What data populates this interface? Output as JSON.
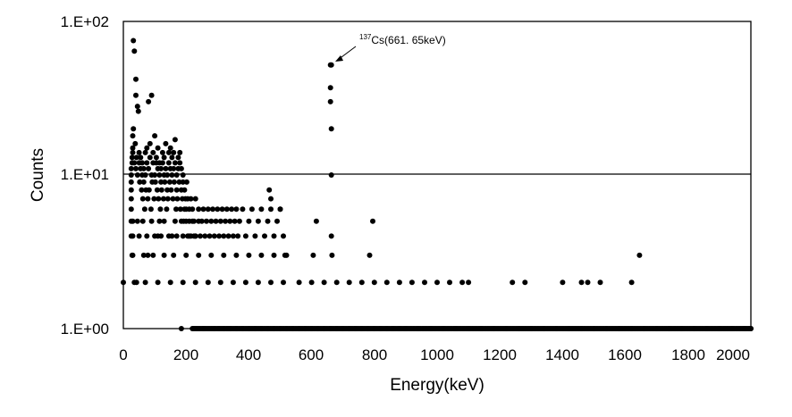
{
  "chart_data": {
    "type": "scatter",
    "xlabel": "Energy(keV)",
    "ylabel": "Counts",
    "xlim": [
      0,
      2000
    ],
    "ylim": [
      1,
      100
    ],
    "y_scale": "log",
    "x_ticks": [
      "0",
      "200",
      "400",
      "600",
      "800",
      "1000",
      "1200",
      "1400",
      "1600",
      "1800",
      "2000"
    ],
    "y_ticks": [
      "1.E+00",
      "1.E+01",
      "1.E+02"
    ],
    "grid": "horizontal",
    "marker_color": "#000000",
    "annotation": {
      "superscript": "137",
      "text": "Cs(661. 65keV)",
      "x": 663,
      "y": 52
    },
    "x": [
      0,
      25,
      25,
      25,
      25,
      25,
      25,
      25,
      25,
      28,
      28,
      30,
      30,
      30,
      32,
      32,
      35,
      35,
      38,
      40,
      40,
      40,
      42,
      45,
      45,
      48,
      50,
      50,
      52,
      55,
      55,
      58,
      60,
      60,
      62,
      65,
      65,
      68,
      70,
      70,
      72,
      75,
      75,
      78,
      80,
      80,
      82,
      85,
      85,
      88,
      90,
      90,
      92,
      95,
      95,
      98,
      100,
      100,
      102,
      105,
      105,
      108,
      110,
      110,
      112,
      115,
      115,
      118,
      120,
      120,
      122,
      125,
      125,
      128,
      130,
      130,
      132,
      135,
      135,
      138,
      140,
      140,
      142,
      145,
      145,
      148,
      150,
      150,
      152,
      155,
      155,
      158,
      160,
      160,
      162,
      165,
      165,
      168,
      170,
      170,
      172,
      175,
      175,
      178,
      180,
      180,
      182,
      185,
      185,
      188,
      190,
      190,
      192,
      195,
      195,
      198,
      200,
      200,
      202,
      205,
      205,
      210,
      210,
      215,
      215,
      220,
      220,
      225,
      225,
      230,
      230,
      240,
      240,
      245,
      250,
      255,
      260,
      265,
      270,
      275,
      280,
      285,
      290,
      295,
      300,
      305,
      310,
      315,
      320,
      325,
      330,
      335,
      340,
      345,
      350,
      355,
      360,
      365,
      370,
      380,
      390,
      400,
      410,
      420,
      430,
      440,
      450,
      460,
      470,
      480,
      490,
      500,
      510,
      30,
      45,
      62,
      90,
      115,
      130,
      165,
      185,
      30,
      50,
      75,
      100,
      120,
      145,
      170,
      190,
      210,
      230,
      30,
      65,
      95,
      130,
      160,
      200,
      240,
      280,
      320,
      360,
      400,
      440,
      480,
      520,
      35,
      70,
      110,
      150,
      190,
      230,
      270,
      310,
      350,
      390,
      430,
      470,
      510,
      560,
      600,
      640,
      680,
      720,
      760,
      800,
      840,
      880,
      920,
      960,
      1000,
      1040,
      1080,
      1100,
      1240,
      1280,
      1400,
      1460,
      1480,
      1520,
      1620,
      185,
      255,
      290,
      305,
      320,
      340,
      360,
      380,
      400,
      420,
      440,
      460,
      480,
      500,
      520,
      540,
      560,
      580,
      600,
      620,
      640,
      660,
      680,
      700,
      720,
      740,
      760,
      780,
      800,
      820,
      840,
      860,
      880,
      900,
      940,
      980,
      1020,
      1060,
      1100,
      1140,
      1180,
      1220,
      1260,
      1300,
      1340,
      1380,
      1420,
      1460,
      1500,
      1540,
      1580,
      1620,
      1660,
      1700,
      1740,
      1780,
      1820,
      1860,
      1900,
      1940,
      1980,
      2000,
      660,
      660,
      660,
      663,
      663,
      663,
      663,
      615,
      795,
      465,
      470,
      500,
      515,
      605,
      665,
      785,
      1645,
      28,
      42,
      78,
      110,
      155
    ],
    "y": [
      2,
      4,
      5,
      6,
      7,
      8,
      9,
      10,
      11,
      12,
      13,
      14,
      15,
      18,
      20,
      75,
      64,
      12,
      16,
      33,
      42,
      11,
      13,
      28,
      10,
      26,
      12,
      14,
      9,
      11,
      13,
      8,
      10,
      12,
      7,
      9,
      11,
      6,
      10,
      14,
      8,
      12,
      15,
      7,
      11,
      30,
      8,
      13,
      16,
      6,
      10,
      33,
      9,
      12,
      14,
      7,
      10,
      18,
      9,
      12,
      13,
      8,
      11,
      15,
      7,
      10,
      12,
      6,
      9,
      11,
      8,
      12,
      14,
      7,
      10,
      13,
      9,
      11,
      16,
      6,
      8,
      10,
      7,
      12,
      14,
      9,
      11,
      15,
      8,
      10,
      13,
      7,
      11,
      14,
      9,
      12,
      17,
      6,
      8,
      10,
      7,
      11,
      13,
      9,
      12,
      14,
      6,
      8,
      11,
      7,
      9,
      10,
      5,
      8,
      6,
      7,
      5,
      6,
      9,
      4,
      7,
      5,
      6,
      7,
      4,
      5,
      6,
      4,
      5,
      7,
      4,
      5,
      6,
      4,
      5,
      6,
      4,
      5,
      6,
      4,
      5,
      6,
      4,
      5,
      6,
      4,
      5,
      6,
      4,
      5,
      6,
      4,
      5,
      6,
      4,
      5,
      6,
      4,
      5,
      6,
      4,
      5,
      6,
      4,
      5,
      6,
      4,
      5,
      6,
      4,
      5,
      6,
      4,
      5,
      5,
      5,
      5,
      5,
      5,
      5,
      5,
      4,
      4,
      4,
      4,
      4,
      4,
      4,
      4,
      4,
      4,
      3,
      3,
      3,
      3,
      3,
      3,
      3,
      3,
      3,
      3,
      3,
      3,
      3,
      3,
      2,
      2,
      2,
      2,
      2,
      2,
      2,
      2,
      2,
      2,
      2,
      2,
      2,
      2,
      2,
      2,
      2,
      2,
      2,
      2,
      2,
      2,
      2,
      2,
      2,
      2,
      2,
      2,
      2,
      2,
      2,
      2,
      2,
      2,
      2,
      1,
      1,
      1,
      1,
      1,
      1,
      1,
      1,
      1,
      1,
      1,
      1,
      1,
      1,
      1,
      1,
      1,
      1,
      1,
      1,
      1,
      1,
      1,
      1,
      1,
      1,
      1,
      1,
      1,
      1,
      1,
      1,
      1,
      1,
      1,
      1,
      1,
      1,
      1,
      1,
      1,
      1,
      1,
      1,
      1,
      1,
      1,
      1,
      1,
      1,
      1,
      1,
      1,
      1,
      1,
      1,
      1,
      1,
      1,
      1,
      1,
      1,
      52,
      37,
      30,
      20,
      10,
      4,
      52,
      5,
      5,
      8,
      7,
      6,
      3,
      3,
      3,
      3,
      3,
      3,
      2,
      3,
      4,
      4
    ]
  }
}
